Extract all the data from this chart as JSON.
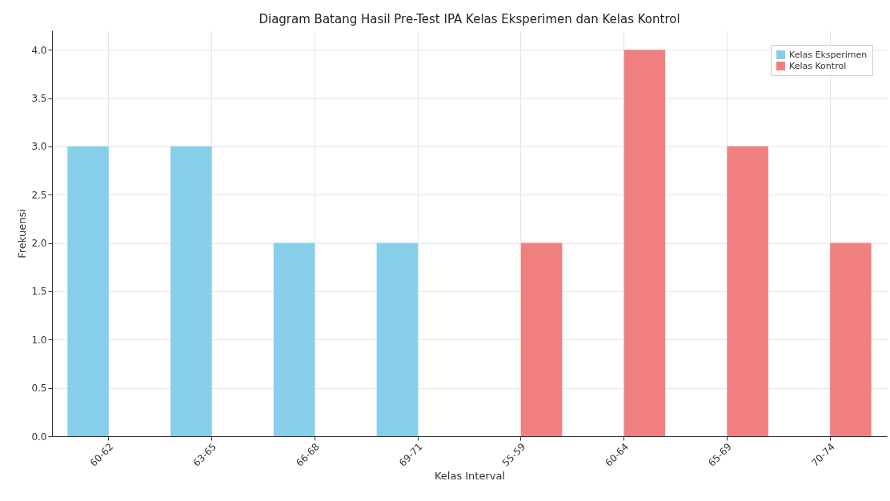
{
  "chart_data": {
    "type": "bar",
    "title": "Diagram Batang Hasil Pre-Test IPA Kelas Eksperimen dan Kelas Kontrol",
    "xlabel": "Kelas Interval",
    "ylabel": "Frekuensi",
    "categories": [
      "60-62",
      "63-65",
      "66-68",
      "69-71",
      "55-59",
      "60-64",
      "65-69",
      "70-74"
    ],
    "series": [
      {
        "name": "Kelas Eksperimen",
        "color": "#87ceeb",
        "values": [
          3,
          3,
          2,
          2,
          null,
          null,
          null,
          null
        ]
      },
      {
        "name": "Kelas Kontrol",
        "color": "#f08080",
        "values": [
          null,
          null,
          null,
          null,
          2,
          4,
          3,
          2
        ]
      }
    ],
    "ylim": [
      0,
      4.2
    ],
    "yticks": [
      {
        "value": 0,
        "label": "0.0"
      },
      0.5,
      {
        "value": 1,
        "label": "1.0"
      },
      1.5,
      {
        "value": 2,
        "label": "2.0"
      },
      2.5,
      {
        "value": 3,
        "label": "3.0"
      },
      3.5,
      {
        "value": 4,
        "label": "4.0"
      }
    ],
    "grid": true,
    "legend": "top right"
  }
}
